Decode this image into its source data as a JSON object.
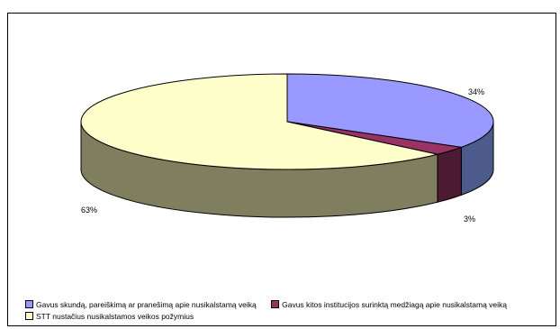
{
  "chart_data": {
    "type": "pie",
    "categories": [
      "Gavus skundą, pareiškimą ar pranešimą apie nusikalstamą veiką",
      "Gavus kitos institucijos surinktą medžiagą apie nusikalstamą veiką",
      "STT nustačius nusikalstamos veikos požymius"
    ],
    "values": [
      34,
      3,
      63
    ],
    "data_labels": [
      "34%",
      "3%",
      "63%"
    ],
    "colors": [
      "#9999ff",
      "#993366",
      "#ffffcc"
    ],
    "side_colors": [
      "#4d5a8c",
      "#4d1a33",
      "#7f7f60"
    ],
    "legend_position": "bottom",
    "style": "3d-pie"
  }
}
